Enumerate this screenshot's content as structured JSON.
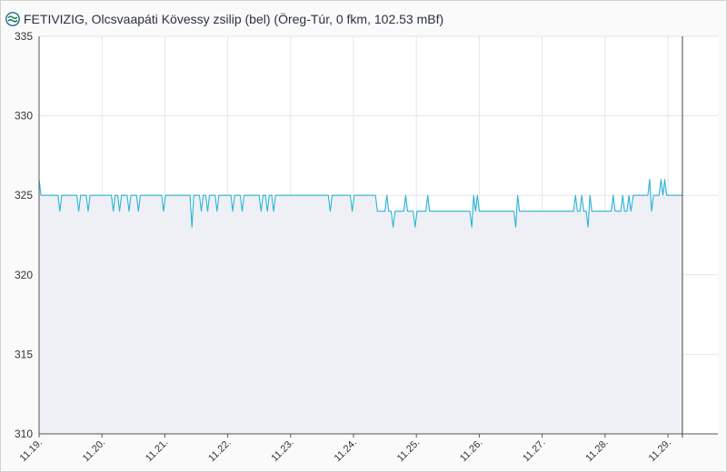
{
  "header": {
    "title": "FETIVIZIG, Olcsvaapáti Kövessy zsilip (bel) (Öreg-Túr, 0 fkm, 102.53 mBf)",
    "logo_icon": "fetivizig-logo-icon"
  },
  "colors": {
    "line": "#2bb3d6",
    "fill": "#eef0f5",
    "grid": "#e6e6e6",
    "axis": "#555555",
    "cursor": "#444444"
  },
  "chart_data": {
    "type": "area",
    "title": "FETIVIZIG, Olcsvaapáti Kövessy zsilip (bel) (Öreg-Túr, 0 fkm, 102.53 mBf)",
    "xlabel": "",
    "ylabel": "",
    "ylim": [
      310,
      335
    ],
    "yticks": [
      310,
      315,
      320,
      325,
      330,
      335
    ],
    "xlim": [
      0,
      10.23
    ],
    "xticks": [
      {
        "x": 0,
        "label": "11.19."
      },
      {
        "x": 1,
        "label": "11.20."
      },
      {
        "x": 2,
        "label": "11.21."
      },
      {
        "x": 3,
        "label": "11.22."
      },
      {
        "x": 4,
        "label": "11.23."
      },
      {
        "x": 5,
        "label": "11.24."
      },
      {
        "x": 6,
        "label": "11.25."
      },
      {
        "x": 7,
        "label": "11.26."
      },
      {
        "x": 8,
        "label": "11.27."
      },
      {
        "x": 9,
        "label": "11.28."
      },
      {
        "x": 10,
        "label": "11.29."
      }
    ],
    "grid": true,
    "cursor_x": 10.23,
    "series": [
      {
        "points": [
          [
            0,
            326
          ],
          [
            0.03,
            325
          ],
          [
            0.3,
            325
          ],
          [
            0.33,
            324
          ],
          [
            0.36,
            325
          ],
          [
            0.6,
            325
          ],
          [
            0.63,
            324
          ],
          [
            0.66,
            325
          ],
          [
            0.75,
            325
          ],
          [
            0.78,
            324
          ],
          [
            0.81,
            325
          ],
          [
            1.15,
            325
          ],
          [
            1.18,
            324
          ],
          [
            1.21,
            325
          ],
          [
            1.25,
            325
          ],
          [
            1.28,
            324
          ],
          [
            1.31,
            325
          ],
          [
            1.4,
            325
          ],
          [
            1.43,
            324
          ],
          [
            1.46,
            325
          ],
          [
            1.55,
            325
          ],
          [
            1.58,
            324
          ],
          [
            1.61,
            325
          ],
          [
            1.95,
            325
          ],
          [
            1.98,
            324
          ],
          [
            2.01,
            325
          ],
          [
            2.4,
            325
          ],
          [
            2.43,
            323
          ],
          [
            2.46,
            325
          ],
          [
            2.55,
            325
          ],
          [
            2.58,
            324
          ],
          [
            2.61,
            325
          ],
          [
            2.65,
            325
          ],
          [
            2.68,
            324
          ],
          [
            2.71,
            325
          ],
          [
            2.8,
            325
          ],
          [
            2.83,
            324
          ],
          [
            2.86,
            325
          ],
          [
            3.05,
            325
          ],
          [
            3.08,
            324
          ],
          [
            3.11,
            325
          ],
          [
            3.2,
            325
          ],
          [
            3.23,
            324
          ],
          [
            3.26,
            325
          ],
          [
            3.5,
            325
          ],
          [
            3.53,
            324
          ],
          [
            3.56,
            325
          ],
          [
            3.6,
            325
          ],
          [
            3.63,
            324
          ],
          [
            3.66,
            325
          ],
          [
            3.7,
            325
          ],
          [
            3.73,
            324
          ],
          [
            3.76,
            325
          ],
          [
            4.6,
            325
          ],
          [
            4.63,
            324
          ],
          [
            4.66,
            325
          ],
          [
            4.95,
            325
          ],
          [
            4.98,
            324
          ],
          [
            5.01,
            325
          ],
          [
            5.35,
            325
          ],
          [
            5.38,
            324
          ],
          [
            5.5,
            324
          ],
          [
            5.53,
            325
          ],
          [
            5.56,
            324
          ],
          [
            5.6,
            324
          ],
          [
            5.63,
            323
          ],
          [
            5.66,
            324
          ],
          [
            5.8,
            324
          ],
          [
            5.83,
            325
          ],
          [
            5.86,
            324
          ],
          [
            5.95,
            324
          ],
          [
            5.98,
            323
          ],
          [
            6.01,
            324
          ],
          [
            6.15,
            324
          ],
          [
            6.18,
            325
          ],
          [
            6.21,
            324
          ],
          [
            6.85,
            324
          ],
          [
            6.88,
            323
          ],
          [
            6.91,
            325
          ],
          [
            6.94,
            324
          ],
          [
            6.97,
            325
          ],
          [
            7.0,
            324
          ],
          [
            7.55,
            324
          ],
          [
            7.58,
            323
          ],
          [
            7.61,
            325
          ],
          [
            7.64,
            324
          ],
          [
            8.5,
            324
          ],
          [
            8.53,
            325
          ],
          [
            8.56,
            324
          ],
          [
            8.6,
            324
          ],
          [
            8.63,
            325
          ],
          [
            8.66,
            324
          ],
          [
            8.7,
            324
          ],
          [
            8.73,
            323
          ],
          [
            8.76,
            325
          ],
          [
            8.79,
            324
          ],
          [
            9.1,
            324
          ],
          [
            9.13,
            325
          ],
          [
            9.16,
            324
          ],
          [
            9.25,
            324
          ],
          [
            9.28,
            325
          ],
          [
            9.31,
            324
          ],
          [
            9.35,
            324
          ],
          [
            9.38,
            325
          ],
          [
            9.41,
            324
          ],
          [
            9.45,
            325
          ],
          [
            9.68,
            325
          ],
          [
            9.71,
            326
          ],
          [
            9.74,
            324
          ],
          [
            9.77,
            325
          ],
          [
            9.86,
            325
          ],
          [
            9.89,
            326
          ],
          [
            9.92,
            325
          ],
          [
            9.95,
            326
          ],
          [
            9.98,
            325
          ],
          [
            10.23,
            325
          ]
        ]
      }
    ]
  }
}
